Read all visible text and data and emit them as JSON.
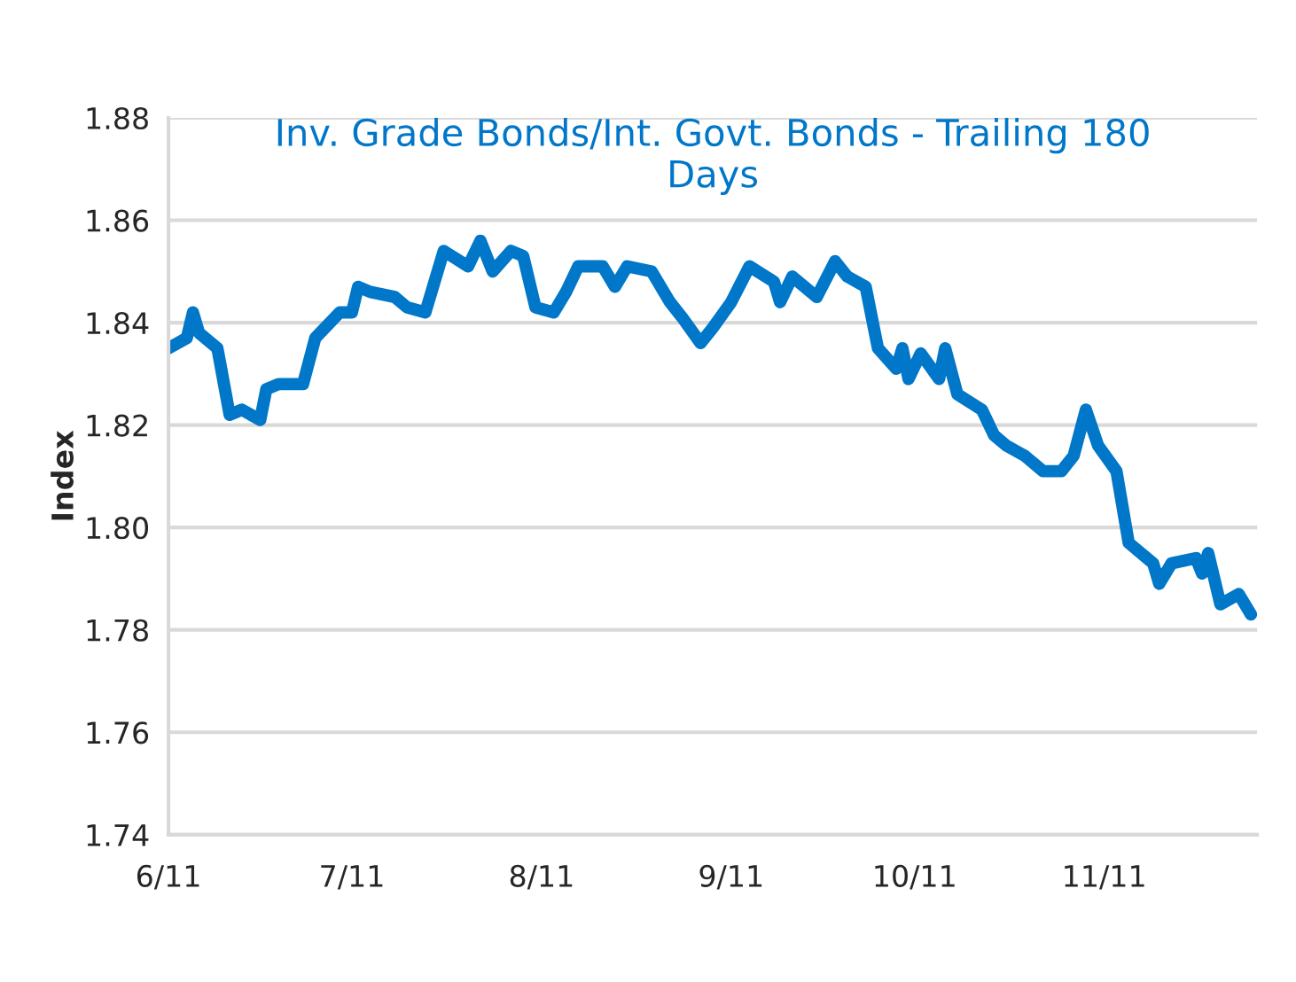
{
  "chart_data": {
    "type": "line",
    "title": "Inv. Grade Bonds/Int. Govt. Bonds - Trailing 180 Days",
    "ylabel": "Index",
    "x": [
      "2011-06-01",
      "2011-06-04",
      "2011-06-05",
      "2011-06-06",
      "2011-06-09",
      "2011-06-11",
      "2011-06-13",
      "2011-06-16",
      "2011-06-17",
      "2011-06-19",
      "2011-06-23",
      "2011-06-25",
      "2011-06-29",
      "2011-07-01",
      "2011-07-02",
      "2011-07-04",
      "2011-07-08",
      "2011-07-10",
      "2011-07-13",
      "2011-07-16",
      "2011-07-20",
      "2011-07-22",
      "2011-07-24",
      "2011-07-27",
      "2011-07-29",
      "2011-07-31",
      "2011-08-03",
      "2011-08-05",
      "2011-08-07",
      "2011-08-11",
      "2011-08-13",
      "2011-08-15",
      "2011-08-19",
      "2011-08-22",
      "2011-08-24",
      "2011-08-27",
      "2011-08-29",
      "2011-09-01",
      "2011-09-04",
      "2011-09-08",
      "2011-09-09",
      "2011-09-11",
      "2011-09-15",
      "2011-09-18",
      "2011-09-20",
      "2011-09-23",
      "2011-09-25",
      "2011-09-28",
      "2011-09-29",
      "2011-09-30",
      "2011-10-02",
      "2011-10-05",
      "2011-10-06",
      "2011-10-08",
      "2011-10-12",
      "2011-10-14",
      "2011-10-16",
      "2011-10-19",
      "2011-10-22",
      "2011-10-25",
      "2011-10-27",
      "2011-10-29",
      "2011-10-31",
      "2011-11-03",
      "2011-11-05",
      "2011-11-09",
      "2011-11-10",
      "2011-11-12",
      "2011-11-16",
      "2011-11-17",
      "2011-11-18",
      "2011-11-20",
      "2011-11-23",
      "2011-11-25"
    ],
    "series": [
      {
        "color": "#0077c8",
        "values": [
          1.835,
          1.837,
          1.842,
          1.838,
          1.835,
          1.822,
          1.823,
          1.821,
          1.827,
          1.828,
          1.828,
          1.837,
          1.842,
          1.842,
          1.847,
          1.846,
          1.845,
          1.843,
          1.842,
          1.854,
          1.851,
          1.856,
          1.85,
          1.854,
          1.853,
          1.843,
          1.842,
          1.846,
          1.851,
          1.851,
          1.847,
          1.851,
          1.85,
          1.844,
          1.841,
          1.836,
          1.839,
          1.844,
          1.851,
          1.848,
          1.844,
          1.849,
          1.845,
          1.852,
          1.849,
          1.847,
          1.835,
          1.831,
          1.835,
          1.829,
          1.834,
          1.829,
          1.835,
          1.826,
          1.823,
          1.818,
          1.816,
          1.814,
          1.811,
          1.811,
          1.814,
          1.823,
          1.816,
          1.811,
          1.797,
          1.793,
          1.789,
          1.793,
          1.794,
          1.791,
          1.795,
          1.785,
          1.787,
          1.783
        ]
      }
    ],
    "xlim": [
      "2011-06-01",
      "2011-11-26"
    ],
    "xticks": [
      {
        "value": "2011-06-01",
        "label": "6/11"
      },
      {
        "value": "2011-07-01",
        "label": "7/11"
      },
      {
        "value": "2011-08-01",
        "label": "8/11"
      },
      {
        "value": "2011-09-01",
        "label": "9/11"
      },
      {
        "value": "2011-10-01",
        "label": "10/11"
      },
      {
        "value": "2011-11-01",
        "label": "11/11"
      }
    ],
    "ylim": [
      1.74,
      1.88
    ],
    "yticks": [
      {
        "value": 1.74,
        "label": "1.74"
      },
      {
        "value": 1.76,
        "label": "1.76"
      },
      {
        "value": 1.78,
        "label": "1.78"
      },
      {
        "value": 1.8,
        "label": "1.80"
      },
      {
        "value": 1.82,
        "label": "1.82"
      },
      {
        "value": 1.84,
        "label": "1.84"
      },
      {
        "value": 1.86,
        "label": "1.86"
      },
      {
        "value": 1.88,
        "label": "1.88"
      }
    ],
    "grid": "y",
    "line_style": "solid",
    "marker": "none",
    "legend": false
  }
}
